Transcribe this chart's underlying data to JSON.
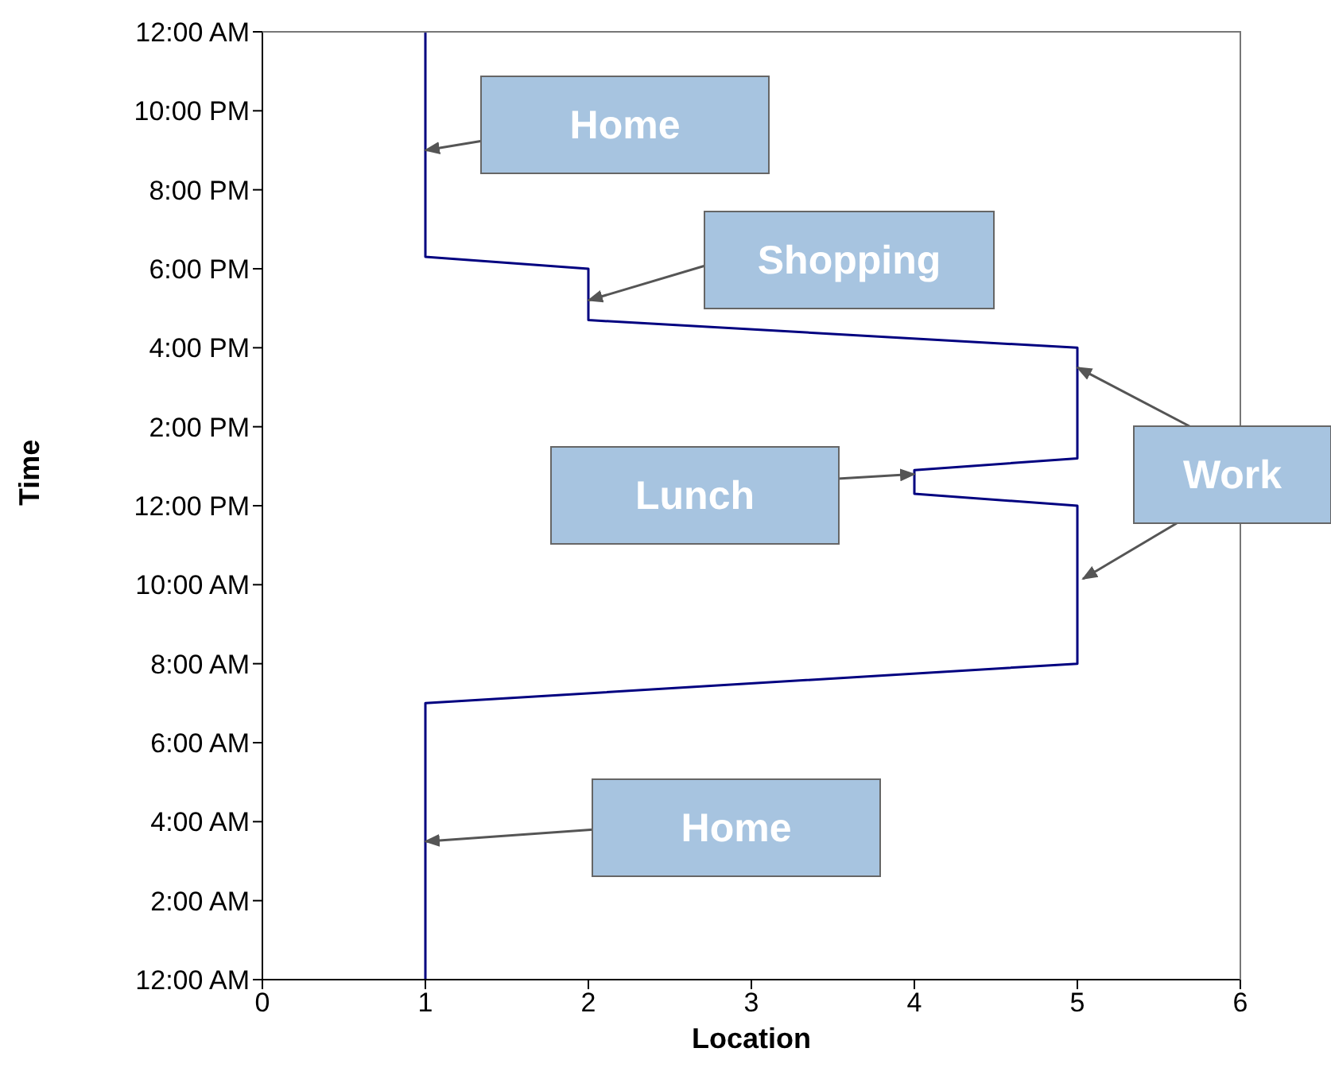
{
  "chart_data": {
    "type": "line",
    "xlabel": "Location",
    "ylabel": "Time",
    "x": [
      1,
      1,
      5,
      5,
      4,
      4,
      5,
      5,
      2,
      2,
      1,
      1
    ],
    "series": [
      {
        "color": "#000080",
        "values": [
          0,
          7,
          8,
          12,
          12.3,
          12.9,
          13.2,
          16,
          16.7,
          18,
          18.3,
          24
        ]
      }
    ],
    "xlim": [
      0,
      6
    ],
    "xticks": [
      0,
      1,
      2,
      3,
      4,
      5,
      6
    ],
    "ylim": [
      0,
      24
    ],
    "yticks": [
      {
        "value": 0,
        "label": "12:00 AM"
      },
      {
        "value": 2,
        "label": "2:00 AM"
      },
      {
        "value": 4,
        "label": "4:00 AM"
      },
      {
        "value": 6,
        "label": "6:00 AM"
      },
      {
        "value": 8,
        "label": "8:00 AM"
      },
      {
        "value": 10,
        "label": "10:00 AM"
      },
      {
        "value": 12,
        "label": "12:00 PM"
      },
      {
        "value": 14,
        "label": "2:00 PM"
      },
      {
        "value": 16,
        "label": "4:00 PM"
      },
      {
        "value": 18,
        "label": "6:00 PM"
      },
      {
        "value": 20,
        "label": "8:00 PM"
      },
      {
        "value": 22,
        "label": "10:00 PM"
      },
      {
        "value": 24,
        "label": "12:00 AM"
      }
    ],
    "marker": "none",
    "line_style": "solid",
    "annotations": [
      {
        "text": "Home",
        "x": 1,
        "y": 21
      },
      {
        "text": "Shopping",
        "x": 2,
        "y": 17.2
      },
      {
        "text": "Lunch",
        "x": 4,
        "y": 12.8
      },
      {
        "text": "Work",
        "x": 5,
        "y": 15.5
      },
      {
        "text": "Home",
        "x": 1,
        "y": 3.5
      }
    ]
  }
}
